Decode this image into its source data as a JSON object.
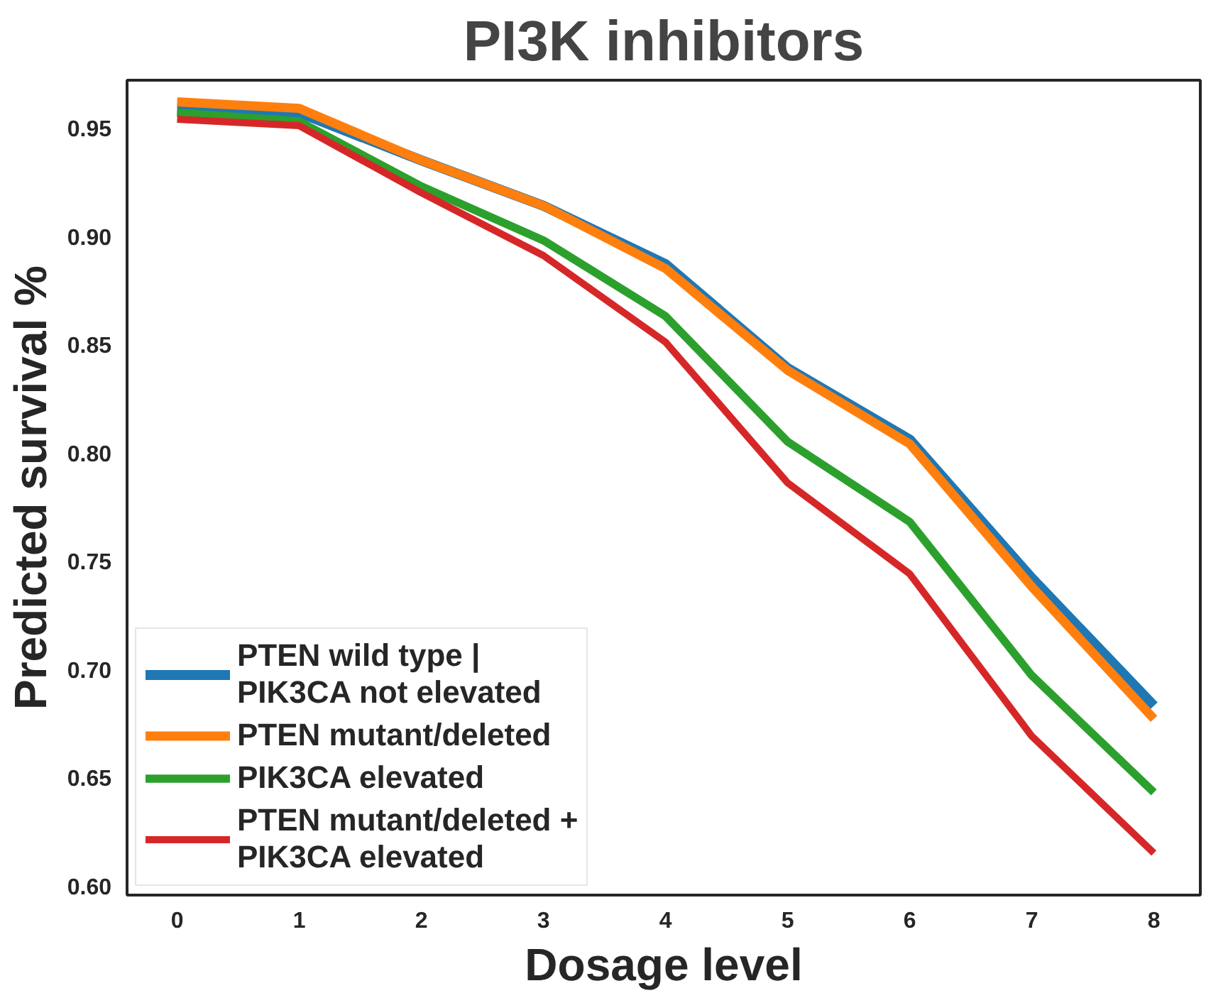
{
  "chart_data": {
    "type": "line",
    "title": "PI3K inhibitors",
    "xlabel": "Dosage level",
    "ylabel": "Predicted survival %",
    "x": [
      0,
      1,
      2,
      3,
      4,
      5,
      6,
      7,
      8
    ],
    "series": [
      {
        "name": "PTEN wild type |\nPIK3CA not elevated",
        "color": "#1f77b4",
        "values": [
          0.958,
          0.957,
          0.935,
          0.914,
          0.887,
          0.839,
          0.806,
          0.742,
          0.683
        ]
      },
      {
        "name": "PTEN mutant/deleted",
        "color": "#ff7f0e",
        "values": [
          0.962,
          0.959,
          0.935,
          0.914,
          0.885,
          0.838,
          0.804,
          0.738,
          0.677
        ]
      },
      {
        "name": "PIK3CA elevated",
        "color": "#2ca02c",
        "values": [
          0.957,
          0.953,
          0.923,
          0.898,
          0.863,
          0.805,
          0.768,
          0.697,
          0.643
        ]
      },
      {
        "name": "PTEN mutant/deleted +\nPIK3CA elevated",
        "color": "#d62728",
        "values": [
          0.954,
          0.951,
          0.92,
          0.891,
          0.851,
          0.786,
          0.744,
          0.669,
          0.615
        ]
      }
    ],
    "xlim": [
      -0.41,
      8.38
    ],
    "ylim": [
      0.5956,
      0.972
    ],
    "xticks": [
      0,
      1,
      2,
      3,
      4,
      5,
      6,
      7,
      8
    ],
    "yticks": [
      {
        "value": 0.6,
        "label": "0.60"
      },
      {
        "value": 0.65,
        "label": "0.65"
      },
      {
        "value": 0.7,
        "label": "0.70"
      },
      {
        "value": 0.75,
        "label": "0.75"
      },
      {
        "value": 0.8,
        "label": "0.80"
      },
      {
        "value": 0.85,
        "label": "0.85"
      },
      {
        "value": 0.9,
        "label": "0.90"
      },
      {
        "value": 0.95,
        "label": "0.95"
      }
    ],
    "grid": false,
    "legend": "bottom left",
    "line_style": "solid",
    "marker": "none"
  }
}
